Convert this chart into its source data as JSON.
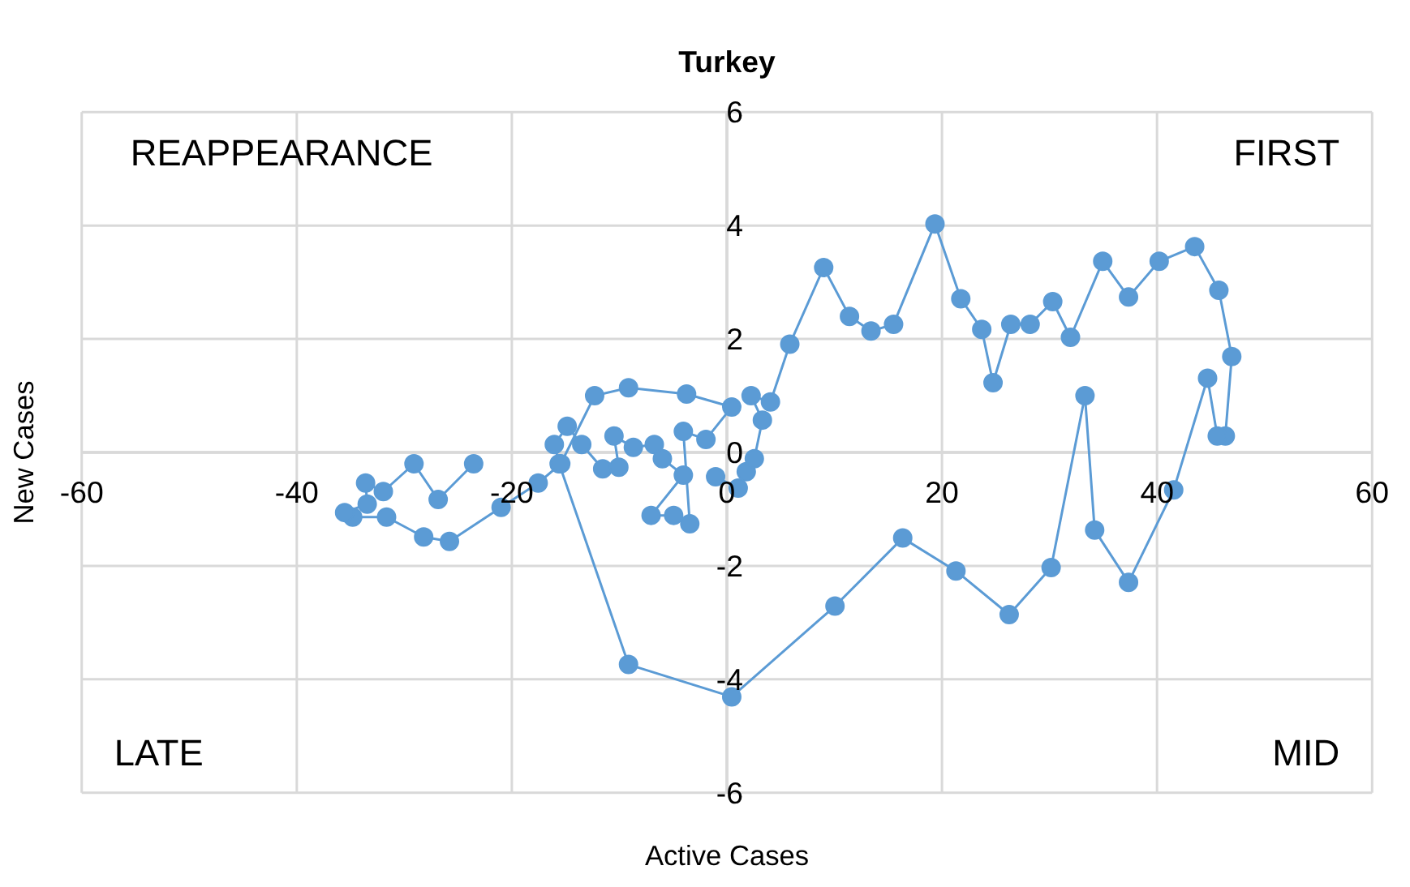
{
  "chart_data": {
    "type": "line",
    "title": "Turkey",
    "xlabel": "Active Cases",
    "ylabel": "New Cases",
    "annotations": [
      "REAPPEARANCE",
      "FIRST",
      "LATE",
      "MID"
    ],
    "xlim": [
      -60,
      60
    ],
    "xticks": [
      -60,
      -40,
      -20,
      0,
      20,
      40,
      60
    ],
    "ylim": [
      -6,
      6
    ],
    "yticks": [
      -6,
      -4,
      -2,
      0,
      2,
      4,
      6
    ],
    "grid": true,
    "marker": "circle",
    "line_style": "solid",
    "series": [
      {
        "color": "#5b9bd5",
        "x": [
          -1.05,
          1.05,
          1.8,
          2.55,
          3.3,
          2.25,
          4.05,
          5.85,
          9.0,
          11.4,
          13.4,
          15.5,
          19.35,
          21.75,
          23.7,
          24.75,
          26.4,
          28.2,
          30.3,
          31.95,
          34.95,
          37.35,
          40.2,
          43.5,
          45.75,
          46.95,
          46.35,
          45.6,
          44.7,
          41.55,
          37.35,
          34.2,
          33.3,
          30.15,
          26.25,
          21.3,
          16.35,
          10.05,
          0.45,
          -9.15,
          -15.6,
          -16.05,
          -14.85,
          -13.5,
          -11.55,
          -10.05,
          -10.5,
          -8.7,
          -6.75,
          -6.0,
          -4.05,
          -7.05,
          -4.95,
          -3.45,
          -4.05,
          -1.95,
          0.45,
          -3.75,
          -9.15,
          -12.3,
          -15.45,
          -17.55,
          -21.0,
          -25.8,
          -28.2,
          -31.65,
          -34.8,
          -35.55,
          -33.45,
          -33.6,
          -31.95,
          -29.1,
          -26.85,
          -23.55
        ],
        "values": [
          -0.43,
          -0.63,
          -0.34,
          -0.11,
          0.57,
          1.0,
          0.89,
          1.91,
          3.26,
          2.4,
          2.14,
          2.26,
          4.03,
          2.71,
          2.17,
          1.23,
          2.26,
          2.26,
          2.66,
          2.03,
          3.37,
          2.74,
          3.37,
          3.63,
          2.86,
          1.69,
          0.29,
          0.29,
          1.31,
          -0.66,
          -2.29,
          -1.37,
          1.0,
          -2.03,
          -2.86,
          -2.09,
          -1.51,
          -2.71,
          -4.31,
          -3.74,
          -0.2,
          0.14,
          0.46,
          0.14,
          -0.29,
          -0.26,
          0.29,
          0.09,
          0.14,
          -0.11,
          -0.4,
          -1.11,
          -1.11,
          -1.26,
          0.37,
          0.23,
          0.8,
          1.03,
          1.14,
          1.0,
          -0.2,
          -0.54,
          -0.97,
          -1.57,
          -1.49,
          -1.14,
          -1.14,
          -1.06,
          -0.91,
          -0.54,
          -0.69,
          -0.2,
          -0.83,
          -0.2
        ]
      }
    ]
  }
}
